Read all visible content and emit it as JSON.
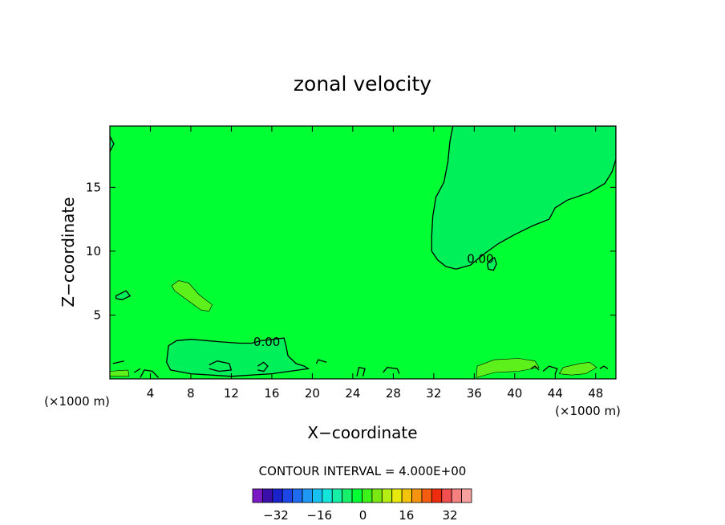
{
  "chart_data": {
    "type": "heatmap",
    "title": "zonal velocity",
    "xlabel": "X−coordinate",
    "ylabel": "Z−coordinate",
    "x_unit_left": "(×1000 m)",
    "x_unit_right": "(×1000 m)",
    "xlim": [
      0,
      50
    ],
    "ylim": [
      0,
      19.8
    ],
    "x_ticks": [
      4,
      8,
      12,
      16,
      20,
      24,
      28,
      32,
      36,
      40,
      44,
      48
    ],
    "y_ticks": [
      5,
      10,
      15
    ],
    "contour_interval_text": "CONTOUR INTERVAL = 4.000E+00",
    "contour_labels": [
      {
        "text": "0.00",
        "x": 15.5,
        "z": 2.9
      },
      {
        "text": "0.00",
        "x": 36.6,
        "z": 9.4
      }
    ],
    "colorbar": {
      "levels": [
        -36,
        -32,
        -28,
        -24,
        -20,
        -16,
        -12,
        -8,
        -4,
        0,
        4,
        8,
        12,
        16,
        20,
        24,
        28,
        32,
        36
      ],
      "tick_labels": [
        "−32",
        "−16",
        "0",
        "16",
        "32"
      ],
      "tick_values": [
        -32,
        -16,
        0,
        16,
        32
      ],
      "colors": [
        "#7a19c4",
        "#3a0ea8",
        "#1a22cc",
        "#1e46e6",
        "#1f6cf0",
        "#1e98f2",
        "#18c2f0",
        "#14e6dc",
        "#16f0a6",
        "#17f06a",
        "#00ff33",
        "#3cf21a",
        "#7ae812",
        "#b4ee14",
        "#e8e80c",
        "#f4c40c",
        "#f59410",
        "#f45c12",
        "#ee2c10",
        "#f25050",
        "#f48080",
        "#f6a0a0"
      ]
    },
    "field_colors": {
      "background": "#00ff33",
      "negative": "#00f05a",
      "positive": "#5ef01a"
    },
    "negative_regions": [
      [
        [
          33.9,
          19.8
        ],
        [
          33.6,
          18.6
        ],
        [
          33.4,
          17.0
        ],
        [
          33.0,
          15.4
        ],
        [
          32.2,
          14.2
        ],
        [
          31.9,
          12.7
        ],
        [
          31.8,
          11.2
        ],
        [
          31.8,
          10.0
        ],
        [
          32.4,
          9.3
        ],
        [
          33.2,
          8.8
        ],
        [
          34.2,
          8.6
        ],
        [
          35.6,
          8.9
        ],
        [
          37.0,
          9.8
        ],
        [
          38.4,
          10.6
        ],
        [
          40.0,
          11.3
        ],
        [
          41.8,
          12.0
        ],
        [
          43.4,
          12.5
        ],
        [
          44.0,
          13.4
        ],
        [
          45.2,
          14.0
        ],
        [
          47.4,
          14.6
        ],
        [
          48.9,
          15.3
        ],
        [
          49.6,
          16.2
        ],
        [
          50.0,
          17.2
        ],
        [
          50.0,
          19.8
        ]
      ],
      [
        [
          5.6,
          1.3
        ],
        [
          5.8,
          2.6
        ],
        [
          6.6,
          3.0
        ],
        [
          8.0,
          3.1
        ],
        [
          9.5,
          3.0
        ],
        [
          11.0,
          2.9
        ],
        [
          12.8,
          2.8
        ],
        [
          14.0,
          2.8
        ],
        [
          15.0,
          3.0
        ],
        [
          17.2,
          3.2
        ],
        [
          17.4,
          2.6
        ],
        [
          17.6,
          1.8
        ],
        [
          18.4,
          1.2
        ],
        [
          19.2,
          1.0
        ],
        [
          19.6,
          0.8
        ],
        [
          16.0,
          0.4
        ],
        [
          12.0,
          0.2
        ],
        [
          8.0,
          0.4
        ],
        [
          6.0,
          0.7
        ]
      ],
      [
        [
          37.6,
          9.3
        ],
        [
          38.0,
          9.5
        ],
        [
          38.2,
          9.0
        ],
        [
          37.9,
          8.5
        ],
        [
          37.4,
          8.6
        ],
        [
          37.3,
          9.0
        ]
      ],
      [
        [
          0.0,
          19.0
        ],
        [
          0.4,
          18.4
        ],
        [
          0.0,
          17.8
        ]
      ],
      [
        [
          0.6,
          6.5
        ],
        [
          1.6,
          6.9
        ],
        [
          2.0,
          6.5
        ],
        [
          1.2,
          6.2
        ],
        [
          0.6,
          6.3
        ]
      ]
    ],
    "positive_regions": [
      [
        [
          6.1,
          7.3
        ],
        [
          6.8,
          7.7
        ],
        [
          7.8,
          7.5
        ],
        [
          8.8,
          6.6
        ],
        [
          10.1,
          5.8
        ],
        [
          9.8,
          5.3
        ],
        [
          9.0,
          5.4
        ],
        [
          7.6,
          6.2
        ],
        [
          6.4,
          6.9
        ]
      ],
      [
        [
          36.2,
          0.1
        ],
        [
          36.3,
          1.0
        ],
        [
          38.0,
          1.5
        ],
        [
          40.4,
          1.6
        ],
        [
          42.0,
          1.4
        ],
        [
          42.4,
          0.9
        ],
        [
          40.4,
          0.6
        ],
        [
          38.0,
          0.5
        ]
      ],
      [
        [
          44.4,
          0.4
        ],
        [
          44.8,
          0.9
        ],
        [
          46.4,
          1.2
        ],
        [
          47.4,
          1.3
        ],
        [
          48.1,
          0.9
        ],
        [
          47.0,
          0.4
        ],
        [
          45.6,
          0.3
        ]
      ],
      [
        [
          0.0,
          0.6
        ],
        [
          1.8,
          0.7
        ],
        [
          1.9,
          0.2
        ],
        [
          0.0,
          0.2
        ]
      ]
    ],
    "zero_contours": [
      [
        [
          0.3,
          1.2
        ],
        [
          1.4,
          1.4
        ]
      ],
      [
        [
          3.0,
          0.1
        ],
        [
          3.4,
          0.7
        ],
        [
          4.2,
          0.6
        ],
        [
          4.8,
          0.1
        ]
      ],
      [
        [
          9.8,
          1.1
        ],
        [
          10.6,
          1.4
        ],
        [
          11.8,
          1.2
        ],
        [
          12.0,
          0.7
        ],
        [
          10.8,
          0.6
        ],
        [
          9.8,
          0.8
        ]
      ],
      [
        [
          14.6,
          1.0
        ],
        [
          15.2,
          1.3
        ],
        [
          15.6,
          1.0
        ],
        [
          15.2,
          0.6
        ],
        [
          14.6,
          0.7
        ]
      ],
      [
        [
          20.4,
          1.2
        ],
        [
          20.6,
          1.5
        ],
        [
          21.4,
          1.3
        ]
      ],
      [
        [
          24.4,
          0.2
        ],
        [
          24.6,
          0.9
        ],
        [
          25.2,
          0.8
        ],
        [
          25.0,
          0.2
        ]
      ],
      [
        [
          27.0,
          0.5
        ],
        [
          27.4,
          0.9
        ],
        [
          28.4,
          0.8
        ],
        [
          28.6,
          0.4
        ]
      ],
      [
        [
          41.6,
          0.8
        ],
        [
          42.0,
          1.0
        ],
        [
          42.4,
          0.7
        ]
      ],
      [
        [
          42.8,
          0.6
        ],
        [
          43.4,
          1.0
        ],
        [
          44.2,
          0.8
        ],
        [
          44.0,
          0.4
        ]
      ],
      [
        [
          48.4,
          0.8
        ],
        [
          48.8,
          1.0
        ],
        [
          49.2,
          0.8
        ]
      ],
      [
        [
          2.4,
          0.5
        ],
        [
          3.0,
          0.8
        ]
      ]
    ]
  }
}
